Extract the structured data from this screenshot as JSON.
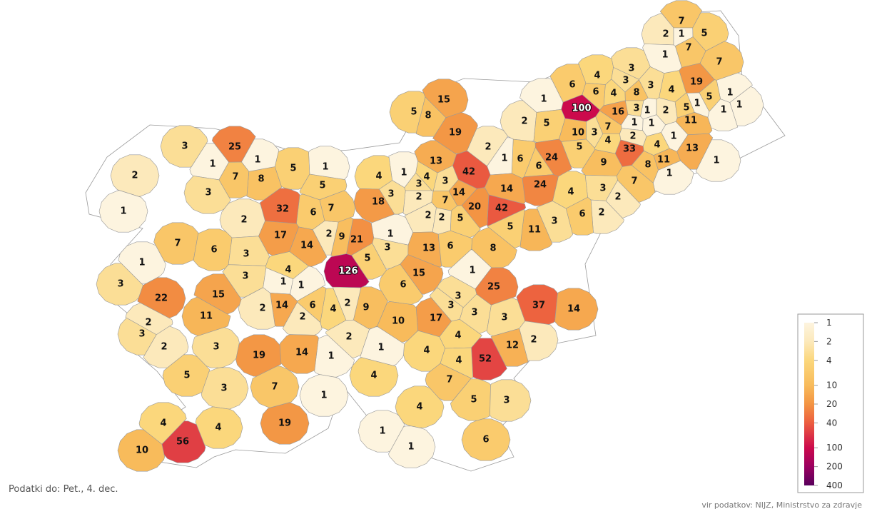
{
  "chart_data": {
    "type": "choropleth",
    "scale": "log",
    "values": [
      7,
      2,
      1,
      5,
      7,
      1,
      7,
      3,
      4,
      3,
      6,
      19,
      6,
      3,
      4,
      8,
      4,
      1,
      5,
      1,
      1,
      1,
      100,
      16,
      3,
      1,
      2,
      5,
      1,
      1,
      1,
      11,
      2,
      5,
      10,
      3,
      7,
      2,
      1,
      4,
      5,
      33,
      4,
      13,
      1,
      11,
      8,
      1,
      24,
      6,
      6,
      1,
      2,
      9,
      7,
      3,
      2,
      4,
      24,
      2,
      6,
      3,
      11,
      14,
      42,
      5,
      20,
      42,
      14,
      7,
      13,
      19,
      15,
      5,
      8,
      3,
      4,
      3,
      1,
      2,
      3,
      4,
      18,
      2,
      2,
      5,
      1,
      3,
      13,
      6,
      8,
      1,
      15,
      25,
      6,
      3,
      3,
      3,
      3,
      17,
      37,
      14,
      2,
      12,
      4,
      52,
      4,
      7,
      5,
      3,
      6,
      4,
      1,
      1,
      4,
      10,
      9,
      2,
      4,
      1,
      4,
      2,
      1,
      1,
      21,
      5,
      9,
      2,
      126,
      7,
      6,
      5,
      1,
      5,
      32,
      8,
      1,
      7,
      25,
      1,
      3,
      2,
      1,
      3,
      2,
      17,
      14,
      7,
      6,
      3,
      4,
      3,
      1,
      1,
      6,
      14,
      2,
      2,
      15,
      22,
      1,
      3,
      11,
      2,
      3,
      2,
      3,
      19,
      14,
      5,
      3,
      7,
      4,
      19,
      4,
      56,
      10
    ],
    "legend": {
      "ticks": [
        1,
        2,
        4,
        10,
        20,
        40,
        100,
        200,
        400
      ],
      "colors": [
        "#fdf4df",
        "#fce9bb",
        "#fbd77c",
        "#f8bb5b",
        "#f39443",
        "#ec5d3f",
        "#cc0a4c",
        "#9b0060",
        "#58005c"
      ]
    },
    "note": "Podatki do: Pet., 4. dec.",
    "source": "vir podatkov: NIJZ, Ministrstvo za zdravje"
  }
}
